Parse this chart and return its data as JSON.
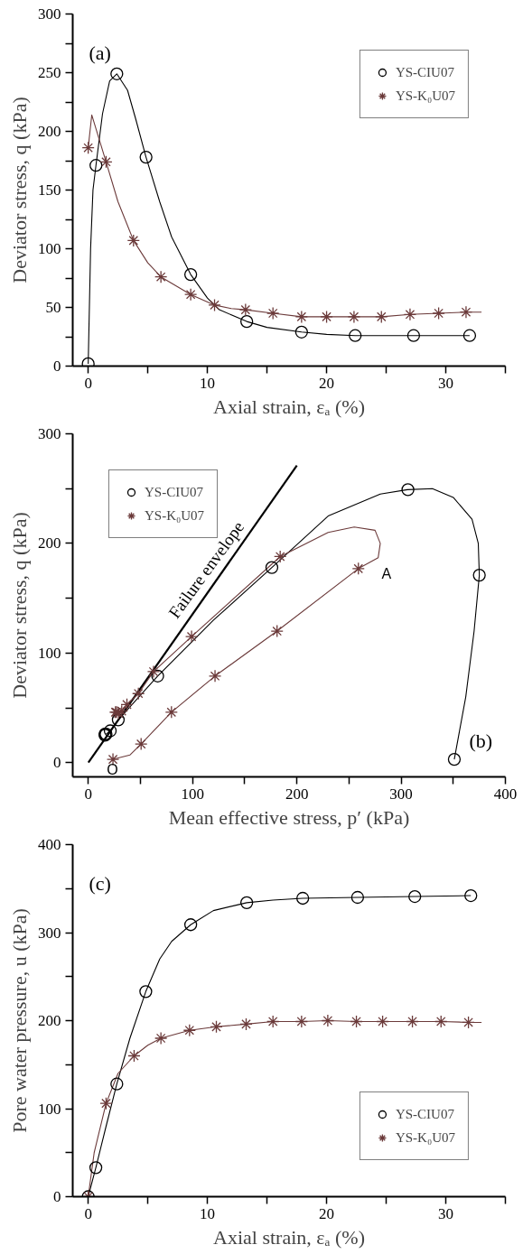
{
  "chart_data": [
    {
      "type": "line",
      "title": "(a)",
      "xlabel": "Axial strain, εₐ (%)",
      "ylabel": "Deviator stress, q (kPa)",
      "xlim": [
        -1.3,
        35
      ],
      "ylim": [
        0,
        300
      ],
      "xticks": [
        0,
        {
          "value": 5,
          "label": null
        },
        10,
        {
          "value": 15,
          "label": null
        },
        20,
        {
          "value": 25,
          "label": null
        },
        30,
        {
          "value": 35,
          "label": null
        }
      ],
      "yticks": [
        0,
        {
          "value": 25,
          "label": null
        },
        50,
        {
          "value": 75,
          "label": null
        },
        100,
        {
          "value": 125,
          "label": null
        },
        150,
        {
          "value": 175,
          "label": null
        },
        200,
        {
          "value": 225,
          "label": null
        },
        250,
        {
          "value": 275,
          "label": null
        },
        300
      ],
      "grid": false,
      "legend": "top right",
      "series": [
        {
          "color": "#000000",
          "x": [
            0,
            0.2,
            0.4,
            0.65,
            1.2,
            1.8,
            2.4,
            3.3,
            4.0,
            4.85,
            6,
            7,
            8.6,
            10,
            11,
            13.3,
            15,
            17.9,
            20,
            22.4,
            25,
            27.3,
            32
          ],
          "values": [
            2,
            100,
            150,
            171,
            215,
            243,
            249,
            235,
            210,
            178,
            140,
            110,
            78,
            58,
            48,
            38,
            33,
            29,
            27,
            26,
            26,
            26,
            26
          ]
        },
        {
          "color": "#6b3a3a",
          "x": [
            0,
            0.3,
            1.5,
            2.5,
            3.8,
            5,
            6.1,
            8.6,
            10.6,
            12,
            13.2,
            15.5,
            17.9,
            20,
            22.3,
            24.6,
            27,
            29.4,
            31.7,
            33
          ],
          "values": [
            186,
            214,
            174,
            140,
            107,
            88,
            76,
            61,
            52,
            49,
            48,
            45,
            42,
            42,
            42,
            42,
            44,
            45,
            46,
            46
          ]
        },
        {
          "type": "scatter",
          "name": "YS-CIU07",
          "color": "#000000",
          "marker": "circle",
          "x": [
            0,
            0.65,
            2.4,
            4.85,
            8.6,
            13.3,
            17.9,
            22.4,
            27.3,
            32
          ],
          "values": [
            2,
            171,
            249,
            178,
            78,
            38,
            29,
            26,
            26,
            26
          ]
        },
        {
          "type": "scatter",
          "name": "YS-K₀U07",
          "color": "#6b3a3a",
          "marker": "cross",
          "x": [
            0,
            1.5,
            3.8,
            6.1,
            8.6,
            10.6,
            13.2,
            15.5,
            17.9,
            20,
            22.3,
            24.6,
            27,
            29.4,
            31.7
          ],
          "values": [
            186,
            174,
            107,
            76,
            61,
            52,
            48,
            45,
            42,
            42,
            42,
            42,
            44,
            45,
            46
          ]
        }
      ]
    },
    {
      "type": "line",
      "xlabel": "Mean effective stress, p′ (kPa)",
      "ylabel": "Deviator stress, q (kPa)",
      "xlim": [
        -15,
        400
      ],
      "ylim": [
        -13,
        300
      ],
      "xticks": [
        0,
        {
          "value": 50,
          "label": null
        },
        100,
        {
          "value": 150,
          "label": null
        },
        200,
        {
          "value": 250,
          "label": null
        },
        300,
        {
          "value": 350,
          "label": null
        },
        400
      ],
      "yticks": [
        0,
        {
          "value": 50,
          "label": null
        },
        100,
        {
          "value": 150,
          "label": null
        },
        200,
        {
          "value": 250,
          "label": null
        },
        300
      ],
      "grid": false,
      "legend": "top left",
      "annotations": [
        "(b)",
        "Failure envelope",
        "A",
        "O"
      ],
      "series": [
        {
          "color": "#000000",
          "x": [
            0,
            200
          ],
          "values": [
            0,
            271
          ]
        },
        {
          "color": "#000000",
          "x": [
            351,
            362,
            370,
            375,
            374,
            368,
            350,
            330,
            306,
            280,
            230,
            176,
            120,
            66.5,
            28.7,
            21,
            17
          ],
          "values": [
            3,
            60,
            120,
            171,
            200,
            222,
            242,
            250,
            249,
            245,
            225,
            178,
            130,
            79,
            39,
            29,
            26
          ]
        },
        {
          "color": "#6b3a3a",
          "x": [
            23.6,
            40,
            50.6,
            79.7,
            121.5,
            181,
            259,
            278,
            280,
            275,
            255,
            230,
            184,
            99,
            62.5,
            48,
            37,
            32,
            27
          ],
          "values": [
            3,
            7,
            17,
            46,
            79,
            120,
            177,
            187,
            200,
            212,
            215,
            210,
            188,
            115,
            83,
            63,
            53,
            47,
            46
          ]
        },
        {
          "type": "scatter",
          "name": "YS-CIU07",
          "color": "#000000",
          "marker": "circle",
          "x": [
            351,
            375,
            306.5,
            176,
            66.5,
            28.7,
            21,
            17,
            16,
            16
          ],
          "values": [
            3,
            171,
            249,
            178,
            79,
            39,
            29,
            26,
            26,
            25
          ]
        },
        {
          "type": "scatter",
          "name": "YS-K₀U07",
          "color": "#6b3a3a",
          "marker": "cross",
          "x": [
            23.6,
            50.6,
            79.7,
            121.5,
            181,
            259,
            184,
            99,
            62.5,
            48,
            37,
            32,
            29,
            27,
            26
          ],
          "values": [
            3,
            17,
            46,
            79,
            120,
            177,
            188,
            115,
            83,
            63,
            53,
            47,
            45,
            46,
            46
          ]
        }
      ]
    },
    {
      "type": "line",
      "title": "(c)",
      "xlabel": "Axial strain, εₐ (%)",
      "ylabel": "Pore water pressure, u (kPa)",
      "xlim": [
        -1.3,
        35
      ],
      "ylim": [
        0,
        400
      ],
      "xticks": [
        0,
        {
          "value": 5,
          "label": null
        },
        10,
        {
          "value": 15,
          "label": null
        },
        20,
        {
          "value": 25,
          "label": null
        },
        30,
        {
          "value": 35,
          "label": null
        }
      ],
      "yticks": [
        0,
        {
          "value": 50,
          "label": null
        },
        100,
        {
          "value": 150,
          "label": null
        },
        200,
        {
          "value": 250,
          "label": null
        },
        300,
        {
          "value": 350,
          "label": null
        },
        400
      ],
      "grid": false,
      "legend": "bottom right",
      "series": [
        {
          "color": "#000000",
          "x": [
            0,
            0.64,
            1.5,
            2.4,
            3.5,
            4.83,
            6,
            7,
            8.6,
            10.5,
            13.3,
            15.5,
            18,
            22.6,
            27.4,
            32.1
          ],
          "values": [
            0,
            33,
            80,
            128,
            180,
            233,
            270,
            290,
            309,
            325,
            334,
            337,
            339,
            340,
            341,
            342
          ]
        },
        {
          "color": "#6b3a3a",
          "x": [
            0,
            0.5,
            1.5,
            2.5,
            3.85,
            5,
            6.1,
            8.5,
            10.75,
            13.25,
            15.5,
            17.9,
            20.1,
            22.5,
            24.7,
            27.2,
            29.6,
            31.9,
            33
          ],
          "values": [
            0,
            50,
            106,
            140,
            160,
            172,
            180,
            189,
            193,
            196,
            199,
            199,
            200,
            199,
            199,
            199,
            199,
            198,
            198
          ]
        },
        {
          "type": "scatter",
          "name": "YS-CIU07",
          "color": "#000000",
          "marker": "circle",
          "x": [
            0,
            0.64,
            2.4,
            4.83,
            8.6,
            13.3,
            18,
            22.6,
            27.4,
            32.1
          ],
          "values": [
            0,
            33,
            128,
            233,
            309,
            334,
            339,
            340,
            341,
            342
          ]
        },
        {
          "type": "scatter",
          "name": "YS-K₀U07",
          "color": "#6b3a3a",
          "marker": "cross",
          "x": [
            0,
            1.5,
            3.85,
            6.1,
            8.5,
            10.75,
            13.25,
            15.5,
            17.9,
            20.1,
            22.5,
            24.7,
            27.2,
            29.6,
            31.9
          ],
          "values": [
            0,
            106,
            160,
            180,
            189,
            193,
            196,
            199,
            199,
            200,
            199,
            199,
            199,
            199,
            198
          ]
        }
      ]
    }
  ]
}
